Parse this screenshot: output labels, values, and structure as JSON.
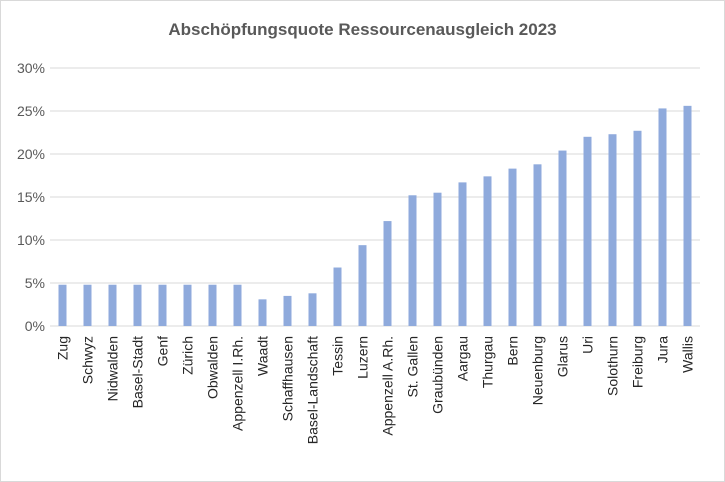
{
  "chart_data": {
    "type": "bar",
    "title": "Abschöpfungsquote Ressourcenausgleich 2023",
    "xlabel": "",
    "ylabel": "",
    "ylim": [
      0,
      30
    ],
    "yticks": [
      "0%",
      "5%",
      "10%",
      "15%",
      "20%",
      "25%",
      "30%"
    ],
    "ytick_values": [
      0,
      5,
      10,
      15,
      20,
      25,
      30
    ],
    "grid": true,
    "bar_color": "#8faadc",
    "categories": [
      "Zug",
      "Schwyz",
      "Nidwalden",
      "Basel-Stadt",
      "Genf",
      "Zürich",
      "Obwalden",
      "Appenzell I.Rh.",
      "Waadt",
      "Schaffhausen",
      "Basel-Landschaft",
      "Tessin",
      "Luzern",
      "Appenzell A.Rh.",
      "St. Gallen",
      "Graubünden",
      "Aargau",
      "Thurgau",
      "Bern",
      "Neuenburg",
      "Glarus",
      "Uri",
      "Solothurn",
      "Freiburg",
      "Jura",
      "Wallis"
    ],
    "values": [
      4.8,
      4.8,
      4.8,
      4.8,
      4.8,
      4.8,
      4.8,
      4.8,
      3.1,
      3.5,
      3.8,
      6.8,
      9.4,
      12.2,
      15.2,
      15.5,
      16.7,
      17.4,
      18.3,
      18.8,
      20.4,
      22.0,
      22.3,
      22.7,
      25.3,
      25.6
    ]
  }
}
